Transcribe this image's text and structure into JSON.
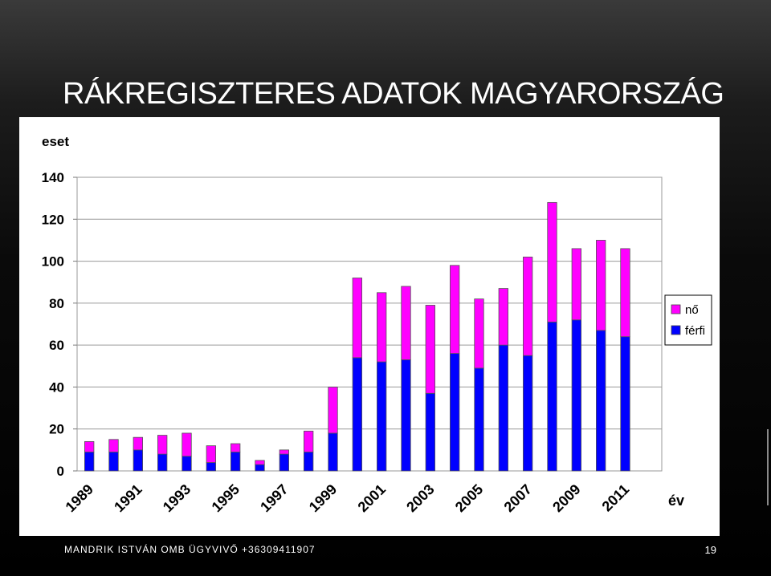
{
  "slide": {
    "title": "RÁKREGISZTERES ADATOK MAGYARORSZÁG",
    "footer": "MANDRIK ISTVÁN OMB ÜGYVIVŐ +36309411907",
    "page_number": "19"
  },
  "chart_data": {
    "type": "bar",
    "stacked": true,
    "title": "",
    "ylabel": "eset",
    "xlabel": "év",
    "ylim": [
      0,
      140
    ],
    "yticks": [
      0,
      20,
      40,
      60,
      80,
      100,
      120,
      140
    ],
    "grid": true,
    "legend_position": "right",
    "categories": [
      "1989",
      "1990",
      "1991",
      "1992",
      "1993",
      "1994",
      "1995",
      "1996",
      "1997",
      "1998",
      "1999",
      "2000",
      "2001",
      "2002",
      "2003",
      "2004",
      "2005",
      "2006",
      "2007",
      "2008",
      "2009",
      "2010",
      "2011",
      "2012"
    ],
    "x_tick_labels": [
      "1989",
      "1991",
      "1993",
      "1995",
      "1997",
      "1999",
      "2001",
      "2003",
      "2005",
      "2007",
      "2009",
      "2011"
    ],
    "series": [
      {
        "name": "férfi",
        "color": "#0000ff",
        "values": [
          9,
          9,
          10,
          8,
          7,
          4,
          9,
          3,
          8,
          9,
          18,
          54,
          52,
          53,
          37,
          56,
          49,
          60,
          55,
          71,
          72,
          67,
          64,
          0
        ]
      },
      {
        "name": "nő",
        "color": "#ff00ff",
        "values": [
          5,
          6,
          6,
          9,
          11,
          8,
          4,
          2,
          2,
          10,
          22,
          38,
          33,
          35,
          42,
          42,
          33,
          27,
          47,
          57,
          34,
          43,
          42,
          0
        ]
      }
    ],
    "legend": [
      "nő",
      "férfi"
    ]
  }
}
